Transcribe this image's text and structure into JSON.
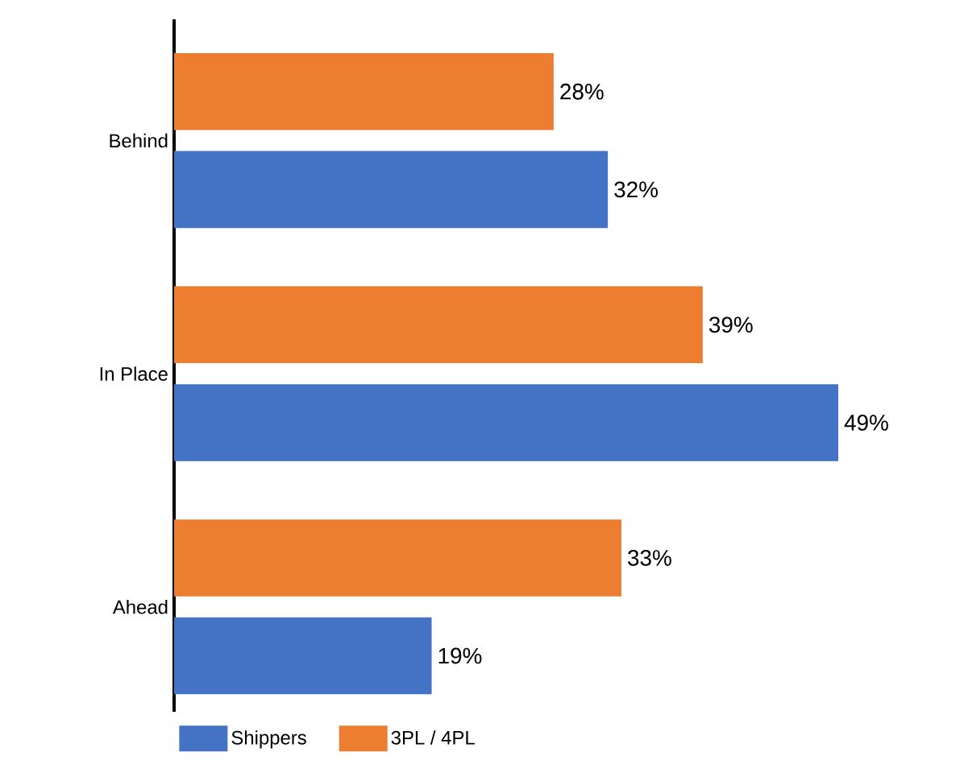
{
  "chart_data": {
    "type": "bar",
    "orientation": "horizontal",
    "categories": [
      "Behind",
      "In Place",
      "Ahead"
    ],
    "series": [
      {
        "name": "Shippers",
        "color": "#4472c4",
        "values": [
          32,
          49,
          19
        ],
        "value_labels": [
          "32%",
          "49%",
          "19%"
        ]
      },
      {
        "name": "3PL / 4PL",
        "color": "#ed7d31",
        "values": [
          28,
          39,
          33
        ],
        "value_labels": [
          "28%",
          "39%",
          "33%"
        ]
      }
    ],
    "legend": "bottom"
  }
}
